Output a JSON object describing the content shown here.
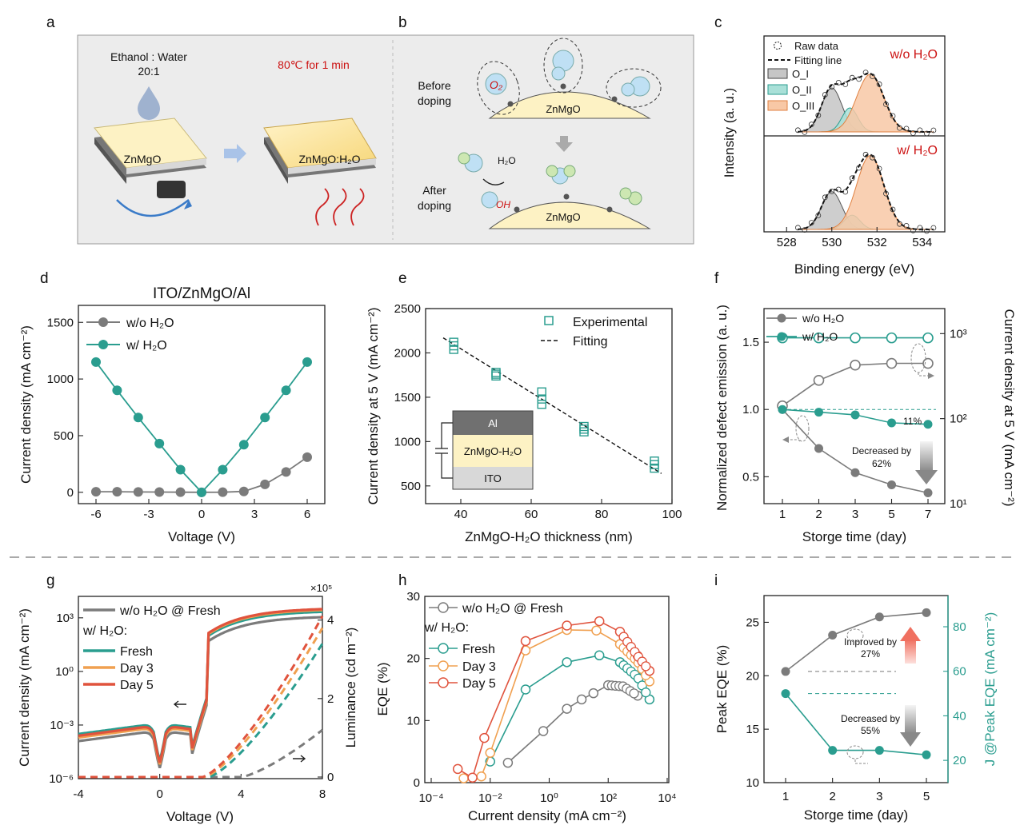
{
  "panel_letters": [
    "a",
    "b",
    "c",
    "d",
    "e",
    "f",
    "g",
    "h",
    "i"
  ],
  "schematic_a": {
    "solvent": "Ethanol : Water",
    "ratio": "20:1",
    "condition": "80℃ for 1 min",
    "film_before": "ZnMgO",
    "film_after": "ZnMgO:H₂O"
  },
  "schematic_b": {
    "before": [
      "Before",
      "doping"
    ],
    "after": [
      "After",
      "doping"
    ],
    "o2": "O₂",
    "oh": "OH",
    "h2o": "H₂O",
    "film": "ZnMgO"
  },
  "colors": {
    "gray": "#7b7b7b",
    "teal": "#2a9d8f",
    "orange": "#f0a050",
    "red": "#e0533d",
    "annotation_red": "#cc1111"
  },
  "chart_data": [
    {
      "id": "c",
      "type": "line",
      "xlabel": "Binding energy (eV)",
      "ylabel": "Intensity (a. u.)",
      "xlim": [
        527,
        535
      ],
      "x_ticks": [
        528,
        530,
        532,
        534
      ],
      "legend": [
        "Raw data",
        "Fitting line",
        "O_I",
        "O_II",
        "O_III"
      ],
      "subpanels": [
        {
          "label": "w/o H₂O",
          "peaks": [
            {
              "name": "O_I",
              "center": 530.0,
              "height": 0.55
            },
            {
              "name": "O_II",
              "center": 530.8,
              "height": 0.3
            },
            {
              "name": "O_III",
              "center": 531.7,
              "height": 0.72
            }
          ]
        },
        {
          "label": "w/ H₂O",
          "peaks": [
            {
              "name": "O_I",
              "center": 530.0,
              "height": 0.45
            },
            {
              "name": "O_II",
              "center": 530.9,
              "height": 0.17
            },
            {
              "name": "O_III",
              "center": 531.7,
              "height": 0.88
            }
          ]
        }
      ]
    },
    {
      "id": "d",
      "type": "line",
      "title": "ITO/ZnMgO/Al",
      "xlabel": "Voltage (V)",
      "ylabel": "Current density (mA cm⁻²)",
      "xlim": [
        -7,
        7
      ],
      "ylim": [
        -100,
        1650
      ],
      "x_ticks": [
        -6,
        -3,
        0,
        3,
        6
      ],
      "y_ticks": [
        0,
        500,
        1000,
        1500
      ],
      "series": [
        {
          "name": "w/o H₂O",
          "color": "gray",
          "x": [
            -6,
            -4.8,
            -3.6,
            -2.4,
            -1.2,
            0,
            1.2,
            2.4,
            3.6,
            4.8,
            6
          ],
          "y": [
            5,
            5,
            3,
            2,
            1,
            0,
            1,
            8,
            70,
            180,
            310
          ]
        },
        {
          "name": "w/ H₂O",
          "color": "teal",
          "x": [
            -6,
            -4.8,
            -3.6,
            -2.4,
            -1.2,
            0,
            1.2,
            2.4,
            3.6,
            4.8,
            6
          ],
          "y": [
            1150,
            900,
            660,
            430,
            200,
            0,
            200,
            420,
            660,
            900,
            1150
          ]
        }
      ]
    },
    {
      "id": "e",
      "type": "scatter",
      "xlabel": "ZnMgO-H₂O thickness (nm)",
      "ylabel": "Current density at 5 V (mA cm⁻²)",
      "xlim": [
        30,
        100
      ],
      "ylim": [
        300,
        2500
      ],
      "x_ticks": [
        40,
        60,
        80,
        100
      ],
      "y_ticks": [
        500,
        1000,
        1500,
        2000,
        2500
      ],
      "legend": [
        "Experimental",
        "Fitting"
      ],
      "x": [
        38,
        38,
        38,
        50,
        50,
        50,
        63,
        63,
        63,
        75,
        75,
        75,
        95,
        95,
        95
      ],
      "y": [
        2120,
        2040,
        2080,
        1780,
        1740,
        1760,
        1560,
        1420,
        1480,
        1170,
        1110,
        1140,
        780,
        700,
        740
      ],
      "fit": {
        "x": [
          35,
          97
        ],
        "y": [
          2170,
          640
        ]
      },
      "inset_layers": [
        "Al",
        "ZnMgO-H₂O",
        "ITO"
      ]
    },
    {
      "id": "f",
      "type": "line",
      "xlabel": "Storge time (day)",
      "ylabel": "Normalized defect emission (a. u.)",
      "y2label": "Current density at 5 V (mA cm⁻²)",
      "categories": [
        "1",
        "2",
        "3",
        "5",
        "7"
      ],
      "ylim": [
        0.3,
        1.75
      ],
      "y_ticks": [
        "0.5",
        "1.0",
        "1.5"
      ],
      "y2_ticks": [
        "10¹",
        "10²",
        "10³"
      ],
      "series": [
        {
          "name": "w/o H₂O",
          "color": "gray",
          "defect": [
            1.0,
            0.71,
            0.53,
            0.44,
            0.38
          ],
          "current_log": [
            2.15,
            2.45,
            2.63,
            2.65,
            2.65
          ]
        },
        {
          "name": "w/ H₂O",
          "color": "teal",
          "defect": [
            1.0,
            0.98,
            0.96,
            0.9,
            0.89
          ],
          "current_log": [
            2.95,
            2.95,
            2.95,
            2.95,
            2.95
          ]
        }
      ],
      "annotations": [
        "11%",
        "Decreased by",
        "62%"
      ]
    },
    {
      "id": "g",
      "type": "line",
      "xlabel": "Voltage (V)",
      "ylabel": "Current density (mA cm⁻²)",
      "y2label": "Luminance (cd m⁻²)",
      "xlim": [
        -4,
        8
      ],
      "x_ticks": [
        -4,
        0,
        4,
        8
      ],
      "y_ticks": [
        "10⁻⁶",
        "10⁻³",
        "10⁰",
        "10³"
      ],
      "y2_ticks": [
        0,
        2,
        4
      ],
      "y2_multiplier": "×10⁵",
      "legend_header": "w/ H₂O:",
      "series": [
        {
          "name": "w/o H₂O @ Fresh",
          "color": "gray"
        },
        {
          "name": "Fresh",
          "color": "teal"
        },
        {
          "name": "Day 3",
          "color": "orange"
        },
        {
          "name": "Day 5",
          "color": "red"
        }
      ]
    },
    {
      "id": "h",
      "type": "line",
      "xlabel": "Current density (mA cm⁻²)",
      "ylabel": "EQE (%)",
      "x_ticks": [
        "10⁻⁴",
        "10⁻²",
        "10⁰",
        "10²",
        "10⁴"
      ],
      "ylim": [
        0,
        30
      ],
      "y_ticks": [
        0,
        10,
        20,
        30
      ],
      "legend_header": "w/ H₂O:",
      "series": [
        {
          "name": "w/o H₂O @ Fresh",
          "color": "gray",
          "logx": [
            -1.4,
            -0.2,
            0.6,
            1.1,
            1.5,
            2.0,
            2.5,
            3.0
          ],
          "y": [
            3.2,
            8.3,
            11.9,
            13.4,
            14.4,
            15.7,
            15.5,
            14.0
          ]
        },
        {
          "name": "Fresh",
          "color": "teal",
          "logx": [
            -2.0,
            -0.8,
            0.6,
            1.7,
            2.4,
            3.0,
            3.4
          ],
          "y": [
            3.4,
            15.0,
            19.4,
            20.5,
            19.4,
            17.0,
            13.4
          ]
        },
        {
          "name": "Day 3",
          "color": "orange",
          "logx": [
            -2.9,
            -2.3,
            -2.0,
            -0.8,
            0.6,
            1.6,
            2.4,
            3.0,
            3.4
          ],
          "y": [
            0.7,
            1.0,
            4.8,
            21.3,
            24.6,
            24.5,
            22.3,
            19.5,
            16.3
          ]
        },
        {
          "name": "Day 5",
          "color": "red",
          "logx": [
            -3.1,
            -2.6,
            -2.2,
            -0.8,
            0.6,
            1.7,
            2.4,
            3.0,
            3.4
          ],
          "y": [
            2.2,
            0.8,
            7.2,
            22.8,
            25.3,
            26.0,
            24.3,
            20.4,
            18.0
          ]
        }
      ]
    },
    {
      "id": "i",
      "type": "line",
      "xlabel": "Storge time (day)",
      "ylabel": "Peak EQE (%)",
      "y2label": "J @Peak EQE (mA cm⁻²)",
      "categories": [
        "1",
        "2",
        "3",
        "5"
      ],
      "ylim": [
        10,
        27.5
      ],
      "y_ticks": [
        10,
        15,
        20,
        25
      ],
      "y2lim": [
        10,
        94
      ],
      "y2_ticks": [
        20,
        40,
        60,
        80
      ],
      "series": [
        {
          "name": "Peak EQE",
          "color": "gray",
          "values": [
            20.4,
            23.8,
            25.5,
            25.9
          ]
        },
        {
          "name": "J @Peak EQE",
          "color": "teal",
          "values": [
            50,
            24.5,
            24.5,
            22.5
          ]
        }
      ],
      "annotations": [
        "Improved by",
        "27%",
        "Decreased by",
        "55%"
      ]
    }
  ]
}
